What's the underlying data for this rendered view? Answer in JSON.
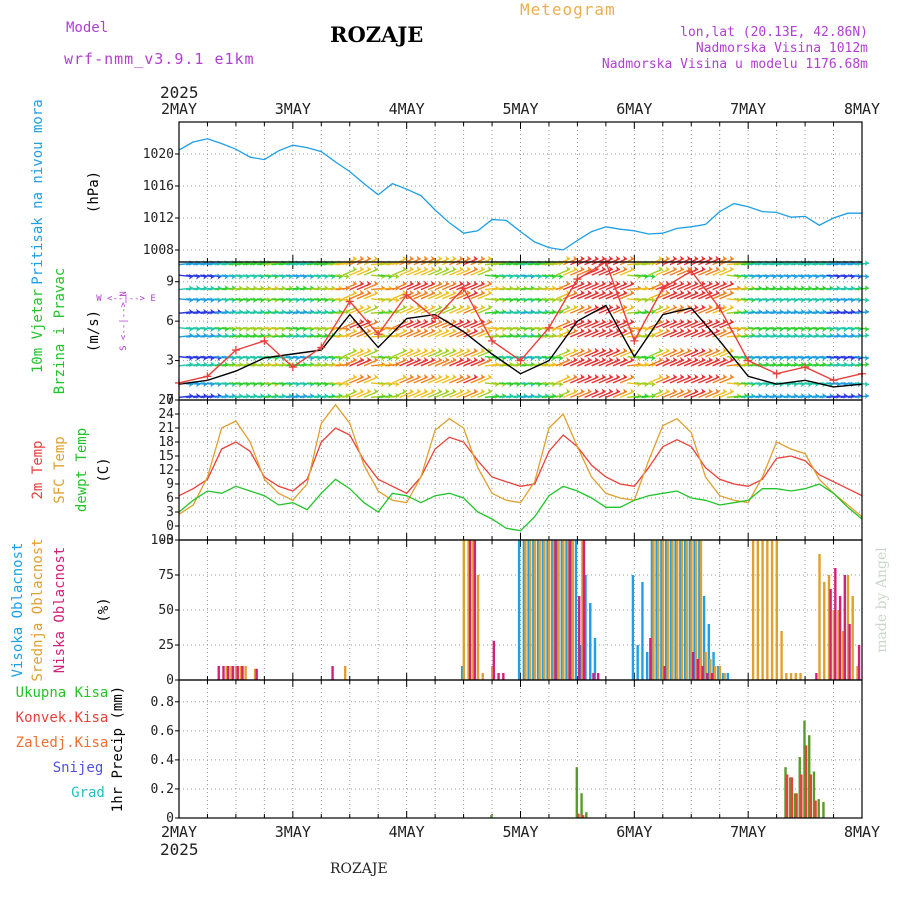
{
  "header": {
    "model_label": "Model",
    "model_name": "wrf-nmm_v3.9.1 e1km",
    "station": "ROZAJE",
    "meteogram": "Meteogram",
    "lonlat": "lon,lat (20.13E, 42.86N)",
    "altitude": "Nadmorska Visina 1012m",
    "model_altitude": "Nadmorska Visina u modelu 1176.68m",
    "watermark": "made by Angel",
    "footer": "ROZAJE"
  },
  "colors": {
    "pressure": "#1e9fe6",
    "t2m": "#e8403a",
    "sfc_temp": "#e0a030",
    "dewpoint": "#22c42a",
    "high_cloud": "#1e9fe6",
    "mid_cloud": "#e0a030",
    "low_cloud": "#d4207a",
    "total_precip": "#5a9a2a",
    "conv_precip": "#e8403a",
    "title_purple": "#b040d0",
    "meteogram_orange": "#e8b050"
  },
  "time_axis": {
    "year": "2025",
    "labels": [
      "2MAY",
      "3MAY",
      "4MAY",
      "5MAY",
      "6MAY",
      "7MAY",
      "8MAY"
    ],
    "start": "2025-05-02T00:00",
    "end": "2025-05-08T00:00"
  },
  "chart_data": [
    {
      "type": "line",
      "title": "",
      "ylabel_lines": [
        "Pritisak na nivou mora",
        "(hPa)"
      ],
      "ylim": [
        1006.5,
        1024
      ],
      "yticks": [
        1008,
        1012,
        1016,
        1020
      ],
      "grid": true,
      "series": [
        {
          "name": "Pritisak na nivou mora",
          "color": "#1e9fe6",
          "x_hours": [
            0,
            3,
            6,
            9,
            12,
            15,
            18,
            21,
            24,
            27,
            30,
            33,
            36,
            39,
            42,
            45,
            48,
            51,
            54,
            57,
            60,
            63,
            66,
            69,
            72,
            75,
            78,
            81,
            84,
            87,
            90,
            93,
            96,
            99,
            102,
            105,
            108,
            111,
            114,
            117,
            120,
            123,
            126,
            129,
            132,
            135,
            138,
            141,
            144
          ],
          "values": [
            1020.5,
            1021.5,
            1021.9,
            1021.3,
            1020.6,
            1019.6,
            1019.3,
            1020.4,
            1021.1,
            1020.8,
            1020.3,
            1019.0,
            1017.8,
            1016.3,
            1014.9,
            1016.3,
            1015.6,
            1014.8,
            1013.0,
            1011.4,
            1010.1,
            1010.4,
            1011.8,
            1011.7,
            1010.3,
            1009.0,
            1008.3,
            1008.0,
            1009.2,
            1010.3,
            1010.9,
            1010.6,
            1010.4,
            1010.0,
            1010.1,
            1010.7,
            1010.9,
            1011.2,
            1012.8,
            1013.8,
            1013.4,
            1012.8,
            1012.7,
            1012.1,
            1012.2,
            1011.1,
            1012.0,
            1012.6,
            1012.6
          ]
        }
      ]
    },
    {
      "type": "line",
      "title": "",
      "ylabel_lines": [
        "10m Vjetar",
        "Brzina i Pravac",
        "(m/s)"
      ],
      "compass": [
        "W <--|--> E",
        "S <--|--> N"
      ],
      "ylim": [
        0,
        10.5
      ],
      "yticks": [
        0,
        3,
        6,
        9
      ],
      "grid": true,
      "arrow_rows": [
        0.2,
        1.3,
        2.6,
        3.3,
        4.8,
        5.5,
        6.6,
        7.7,
        8.4,
        9.5,
        10.3
      ],
      "series": [
        {
          "name": "Brzina",
          "color": "#000000",
          "x_hours": [
            0,
            6,
            12,
            18,
            24,
            30,
            36,
            42,
            48,
            54,
            60,
            66,
            72,
            78,
            84,
            90,
            96,
            102,
            108,
            114,
            120,
            126,
            132,
            138,
            144
          ],
          "values": [
            1.2,
            1.5,
            2.2,
            3.2,
            3.5,
            3.8,
            6.5,
            4.0,
            6.2,
            6.5,
            5.2,
            3.5,
            2.0,
            3.0,
            6.0,
            7.2,
            3.3,
            6.5,
            7.0,
            4.5,
            1.8,
            1.2,
            1.5,
            1.0,
            1.2
          ]
        },
        {
          "name": "Udari",
          "color": "#e8403a",
          "x_hours": [
            0,
            6,
            12,
            18,
            24,
            30,
            36,
            42,
            48,
            54,
            60,
            66,
            72,
            78,
            84,
            90,
            96,
            102,
            108,
            114,
            120,
            126,
            132,
            138,
            144
          ],
          "values": [
            1.3,
            1.8,
            3.8,
            4.5,
            2.5,
            4.0,
            7.5,
            5.0,
            8.0,
            6.2,
            8.5,
            4.5,
            3.0,
            5.5,
            9.2,
            10.5,
            4.5,
            8.5,
            9.8,
            7.0,
            3.0,
            2.0,
            2.5,
            1.5,
            2.0
          ]
        }
      ]
    },
    {
      "type": "line",
      "title": "",
      "ylabel_lines": [
        "2m Temp",
        "SFC Temp",
        "dewpt Temp",
        "(C)"
      ],
      "ylim": [
        -3,
        27
      ],
      "yticks": [
        -3,
        0,
        3,
        6,
        9,
        12,
        15,
        18,
        21,
        24,
        27
      ],
      "grid": true,
      "series": [
        {
          "name": "2m Temp",
          "color": "#e8403a",
          "x_hours": [
            0,
            3,
            6,
            9,
            12,
            15,
            18,
            21,
            24,
            27,
            30,
            33,
            36,
            39,
            42,
            45,
            48,
            51,
            54,
            57,
            60,
            63,
            66,
            69,
            72,
            75,
            78,
            81,
            84,
            87,
            90,
            93,
            96,
            99,
            102,
            105,
            108,
            111,
            114,
            117,
            120,
            123,
            126,
            129,
            132,
            135,
            138,
            141,
            144
          ],
          "values": [
            6.5,
            8.0,
            10.0,
            16.5,
            18.0,
            16.0,
            10.5,
            8.5,
            7.5,
            10.0,
            18.0,
            21.0,
            19.5,
            14.0,
            10.0,
            8.5,
            7.0,
            10.5,
            16.5,
            19.0,
            18.0,
            14.0,
            10.5,
            9.5,
            8.5,
            9.0,
            16.0,
            19.5,
            17.0,
            13.0,
            10.5,
            9.0,
            8.5,
            12.5,
            17.0,
            18.5,
            17.0,
            12.5,
            10.0,
            9.0,
            8.5,
            10.0,
            14.5,
            15.0,
            14.0,
            11.0,
            9.5,
            8.0,
            6.5
          ]
        },
        {
          "name": "SFC Temp",
          "color": "#e0a030",
          "x_hours": [
            0,
            3,
            6,
            9,
            12,
            15,
            18,
            21,
            24,
            27,
            30,
            33,
            36,
            39,
            42,
            45,
            48,
            51,
            54,
            57,
            60,
            63,
            66,
            69,
            72,
            75,
            78,
            81,
            84,
            87,
            90,
            93,
            96,
            99,
            102,
            105,
            108,
            111,
            114,
            117,
            120,
            123,
            126,
            129,
            132,
            135,
            138,
            141,
            144
          ],
          "values": [
            2.5,
            4.5,
            10.5,
            21.0,
            22.5,
            18.0,
            10.0,
            7.0,
            5.5,
            9.0,
            22.0,
            26.0,
            22.0,
            13.0,
            7.5,
            5.5,
            5.0,
            10.5,
            20.5,
            23.0,
            21.0,
            12.5,
            7.0,
            5.5,
            5.0,
            9.5,
            21.0,
            24.0,
            17.0,
            10.5,
            7.0,
            6.0,
            5.5,
            14.0,
            21.5,
            23.0,
            20.0,
            10.5,
            6.5,
            5.5,
            5.0,
            10.5,
            18.0,
            16.5,
            15.5,
            10.0,
            7.0,
            4.5,
            2.0
          ]
        },
        {
          "name": "dewpt Temp",
          "color": "#22c42a",
          "x_hours": [
            0,
            3,
            6,
            9,
            12,
            15,
            18,
            21,
            24,
            27,
            30,
            33,
            36,
            39,
            42,
            45,
            48,
            51,
            54,
            57,
            60,
            63,
            66,
            69,
            72,
            75,
            78,
            81,
            84,
            87,
            90,
            93,
            96,
            99,
            102,
            105,
            108,
            111,
            114,
            117,
            120,
            123,
            126,
            129,
            132,
            135,
            138,
            141,
            144
          ],
          "values": [
            3.0,
            5.5,
            7.5,
            7.0,
            8.5,
            7.5,
            6.5,
            4.5,
            5.0,
            3.5,
            7.0,
            10.0,
            8.0,
            5.0,
            3.0,
            7.0,
            6.5,
            5.0,
            6.5,
            7.0,
            6.0,
            3.0,
            1.5,
            -0.5,
            -1.0,
            2.0,
            6.5,
            8.5,
            7.5,
            6.0,
            4.0,
            4.0,
            5.5,
            6.5,
            7.0,
            7.5,
            6.0,
            5.5,
            4.5,
            5.0,
            5.5,
            8.0,
            8.0,
            7.5,
            8.0,
            9.0,
            7.0,
            4.0,
            1.5
          ]
        }
      ]
    },
    {
      "type": "bar",
      "title": "",
      "ylabel_lines": [
        "Visoka Oblacnost",
        "Srednja Oblacnost",
        "Niska Oblacnost",
        "(%)"
      ],
      "ylim": [
        0,
        100
      ],
      "yticks": [
        0,
        25,
        50,
        75,
        100
      ],
      "grid": true,
      "series": [
        {
          "name": "Visoka Oblacnost",
          "color": "#1e9fe6",
          "x_hours": [
            60,
            72,
            73,
            74,
            75,
            76,
            77,
            78,
            79,
            80,
            81,
            82,
            83,
            84,
            85,
            86,
            87,
            88,
            96,
            97,
            98,
            99,
            100,
            101,
            102,
            103,
            104,
            105,
            106,
            107,
            108,
            109,
            110,
            111,
            112,
            113,
            114,
            115,
            116
          ],
          "values": [
            10,
            100,
            100,
            100,
            100,
            100,
            100,
            100,
            100,
            100,
            100,
            100,
            100,
            100,
            25,
            75,
            55,
            30,
            75,
            25,
            70,
            20,
            100,
            100,
            100,
            100,
            100,
            100,
            100,
            100,
            100,
            100,
            100,
            60,
            40,
            20,
            10,
            5,
            5
          ]
        },
        {
          "name": "Srednja Oblacnost",
          "color": "#e0a030",
          "x_hours": [
            10,
            11,
            12,
            13,
            14,
            16,
            35,
            60,
            61,
            62,
            63,
            64,
            66,
            73,
            74,
            75,
            76,
            77,
            78,
            79,
            80,
            81,
            82,
            83,
            85,
            100,
            101,
            102,
            103,
            104,
            105,
            106,
            107,
            108,
            109,
            110,
            111,
            112,
            113,
            114,
            115,
            121,
            122,
            123,
            124,
            125,
            126,
            127,
            128,
            129,
            130,
            131,
            135,
            136,
            137,
            138,
            139,
            140,
            141,
            142,
            143
          ],
          "values": [
            10,
            10,
            10,
            10,
            10,
            8,
            10,
            100,
            100,
            100,
            75,
            5,
            10,
            100,
            100,
            100,
            100,
            100,
            100,
            100,
            100,
            100,
            100,
            100,
            100,
            100,
            100,
            100,
            100,
            100,
            100,
            100,
            100,
            100,
            100,
            100,
            20,
            15,
            10,
            10,
            5,
            100,
            100,
            100,
            100,
            100,
            100,
            35,
            5,
            5,
            5,
            5,
            90,
            70,
            75,
            50,
            50,
            35,
            75,
            60,
            10
          ]
        },
        {
          "name": "Niska Oblacnost",
          "color": "#d4207a",
          "x_hours": [
            8,
            9,
            10,
            11,
            12,
            13,
            16,
            32,
            61,
            62,
            66,
            67,
            68,
            79,
            82,
            84,
            85,
            87,
            88,
            99,
            102,
            108,
            109,
            110,
            111,
            112,
            134,
            137,
            138,
            139,
            140,
            141,
            143
          ],
          "values": [
            10,
            10,
            10,
            10,
            10,
            10,
            8,
            10,
            100,
            100,
            28,
            5,
            5,
            100,
            100,
            60,
            100,
            5,
            5,
            30,
            10,
            20,
            15,
            10,
            5,
            5,
            5,
            65,
            80,
            60,
            75,
            40,
            25
          ]
        }
      ]
    },
    {
      "type": "bar",
      "title": "",
      "ylabel_lines": [
        "Ukupna Kisa",
        "Konvek.Kisa",
        "Zaledj.Kisa",
        "Snijeg",
        "Grad",
        "1hr Precip (mm)"
      ],
      "legend_colors": [
        "#22c42a",
        "#e8403a",
        "#e87030",
        "#5050e0",
        "#20c0c0"
      ],
      "ylim": [
        0,
        0.95
      ],
      "yticks": [
        0,
        0.2,
        0.4,
        0.6,
        0.8
      ],
      "grid": true,
      "series": [
        {
          "name": "Ukupna Kisa",
          "color": "#5a9a2a",
          "x_hours": [
            66,
            84,
            85,
            86,
            128,
            129,
            130,
            131,
            132,
            133,
            134,
            135,
            136
          ],
          "values": [
            0.02,
            0.35,
            0.17,
            0.04,
            0.35,
            0.28,
            0.17,
            0.42,
            0.67,
            0.57,
            0.32,
            0.13,
            0.11
          ]
        },
        {
          "name": "Konvek.Kisa",
          "color": "#e8403a",
          "x_hours": [
            84,
            85,
            128,
            129,
            130,
            131,
            132,
            133,
            134
          ],
          "values": [
            0.03,
            0.02,
            0.3,
            0.28,
            0.17,
            0.3,
            0.5,
            0.3,
            0.12
          ]
        }
      ]
    }
  ]
}
